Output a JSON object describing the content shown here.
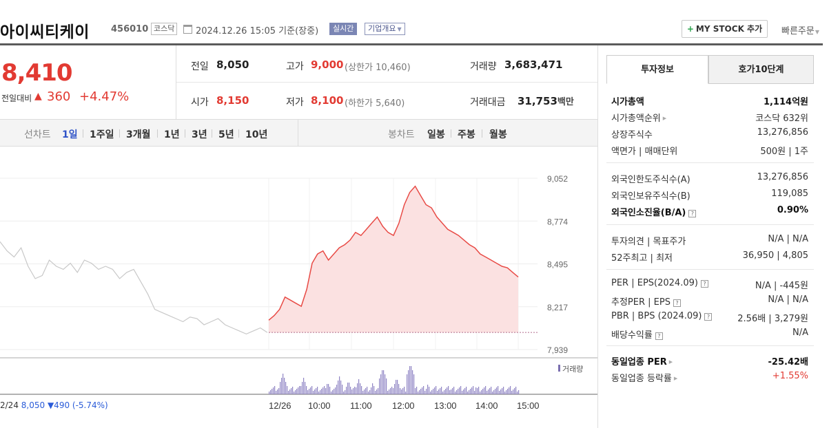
{
  "header": {
    "stock_name": "아이씨티케이",
    "stock_code": "456010",
    "market": "코스닥",
    "as_of": "2024.12.26 15:05  기준(장중)",
    "realtime": "실시간",
    "company_info": "기업개요",
    "my_stock": "MY STOCK 추가",
    "quick_order": "빠른주문"
  },
  "quote": {
    "price": "8,410",
    "change_label": "전일대비",
    "change": "360",
    "change_rate": "+4.47%",
    "prev_close_label": "전일",
    "prev_close": "8,050",
    "high_label": "고가",
    "high": "9,000",
    "upper_limit": "(상한가 10,460)",
    "volume_label": "거래량",
    "volume": "3,683,471",
    "open_label": "시가",
    "open": "8,150",
    "low_label": "저가",
    "low": "8,100",
    "lower_limit": "(하한가 5,640)",
    "value_label": "거래대금",
    "value": "31,753",
    "value_unit": "백만"
  },
  "tabs": {
    "line_chart": "선차트",
    "periods": [
      "1일",
      "1주일",
      "3개월",
      "1년",
      "3년",
      "5년",
      "10년"
    ],
    "candle_chart": "봉차트",
    "candles": [
      "일봉",
      "주봉",
      "월봉"
    ]
  },
  "chart_data": {
    "type": "line",
    "y_ticks": [
      "9,052",
      "8,774",
      "8,495",
      "8,217",
      "7,939"
    ],
    "ylim": [
      7939,
      9052
    ],
    "prev_close_ref": 8050,
    "x_ticks": [
      "12/26",
      "10:00",
      "11:00",
      "12:00",
      "13:00",
      "14:00",
      "15:00"
    ],
    "volume_label": "거래량",
    "prev_day_label": "2/24",
    "prev_day_summary": "8,050 ▼490 (-5.74%)",
    "today_series": [
      8130,
      8160,
      8200,
      8280,
      8260,
      8240,
      8220,
      8330,
      8500,
      8560,
      8580,
      8520,
      8560,
      8600,
      8620,
      8650,
      8700,
      8680,
      8720,
      8760,
      8800,
      8740,
      8700,
      8680,
      8760,
      8880,
      8960,
      9000,
      8940,
      8880,
      8860,
      8800,
      8760,
      8720,
      8700,
      8680,
      8650,
      8620,
      8600,
      8560,
      8540,
      8520,
      8500,
      8480,
      8470,
      8440,
      8410
    ],
    "prev_series": [
      8640,
      8580,
      8540,
      8600,
      8480,
      8400,
      8420,
      8520,
      8480,
      8460,
      8500,
      8440,
      8520,
      8500,
      8460,
      8480,
      8460,
      8400,
      8440,
      8460,
      8380,
      8300,
      8200,
      8180,
      8160,
      8140,
      8120,
      8150,
      8140,
      8100,
      8120,
      8140,
      8100,
      8080,
      8060,
      8040,
      8060,
      8080,
      8050
    ]
  },
  "info_panel": {
    "tab_invest": "투자정보",
    "tab_order": "호가10단계",
    "rows": [
      {
        "k": "시가총액",
        "v": "1,114억원"
      },
      {
        "k": "시가총액순위",
        "v": "코스닥 632위"
      },
      {
        "k": "상장주식수",
        "v": "13,276,856"
      },
      {
        "k": "액면가 | 매매단위",
        "v": "500원 | 1주"
      },
      {
        "k": "외국인한도주식수(A)",
        "v": "13,276,856"
      },
      {
        "k": "외국인보유주식수(B)",
        "v": "119,085"
      },
      {
        "k": "외국인소진율(B/A)",
        "v": "0.90%"
      },
      {
        "k": "투자의견 | 목표주가",
        "v": "N/A | N/A"
      },
      {
        "k": "52주최고 | 최저",
        "v": "36,950 | 4,805"
      },
      {
        "k": "PER | EPS(2024.09)",
        "v": "N/A | -445원"
      },
      {
        "k": "추정PER | EPS",
        "v": "N/A | N/A"
      },
      {
        "k": "PBR | BPS (2024.09)",
        "v": "2.56배 | 3,279원"
      },
      {
        "k": "배당수익률",
        "v": "N/A"
      },
      {
        "k": "동일업종 PER",
        "v": "-25.42배"
      },
      {
        "k": "동일업종 등락률",
        "v": "+1.55%"
      }
    ]
  },
  "colors": {
    "up": "#e23a32",
    "down": "#2a5bd8",
    "accent": "#3054c8"
  }
}
